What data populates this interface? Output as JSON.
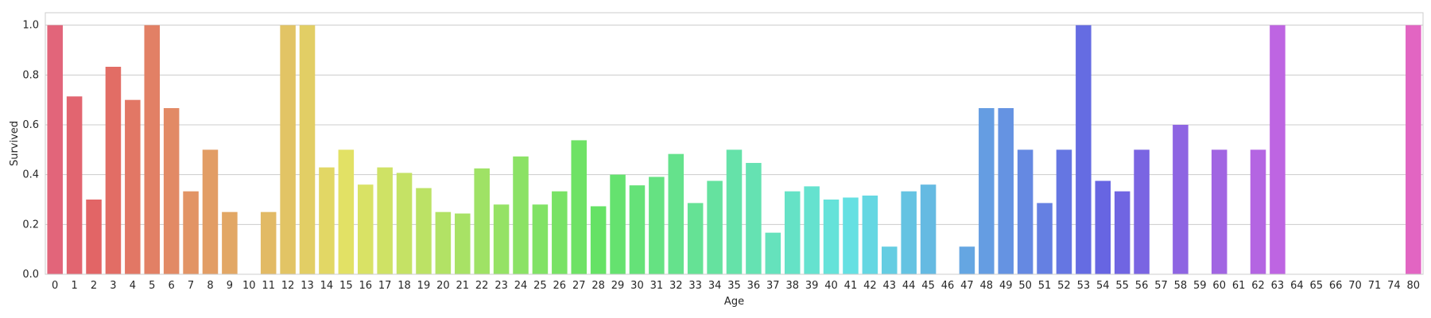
{
  "chart_data": {
    "type": "bar",
    "xlabel": "Age",
    "ylabel": "Survived",
    "ylim": [
      0,
      1.05
    ],
    "yticks": [
      0.0,
      0.2,
      0.4,
      0.6,
      0.8,
      1.0
    ],
    "ytick_labels": [
      "0.0",
      "0.2",
      "0.4",
      "0.6",
      "0.8",
      "1.0"
    ],
    "grid": "horizontal",
    "categories": [
      "0",
      "1",
      "2",
      "3",
      "4",
      "5",
      "6",
      "7",
      "8",
      "9",
      "10",
      "11",
      "12",
      "13",
      "14",
      "15",
      "16",
      "17",
      "18",
      "19",
      "20",
      "21",
      "22",
      "23",
      "24",
      "25",
      "26",
      "27",
      "28",
      "29",
      "30",
      "31",
      "32",
      "33",
      "34",
      "35",
      "36",
      "37",
      "38",
      "39",
      "40",
      "41",
      "42",
      "43",
      "44",
      "45",
      "46",
      "47",
      "48",
      "49",
      "50",
      "51",
      "52",
      "53",
      "54",
      "55",
      "56",
      "57",
      "58",
      "59",
      "60",
      "61",
      "62",
      "63",
      "64",
      "65",
      "66",
      "70",
      "71",
      "74",
      "80"
    ],
    "values": [
      1.0,
      0.714,
      0.3,
      0.833,
      0.7,
      1.0,
      0.667,
      0.333,
      0.5,
      0.25,
      0.0,
      0.25,
      1.0,
      1.0,
      0.429,
      0.5,
      0.36,
      0.429,
      0.407,
      0.346,
      0.25,
      0.244,
      0.425,
      0.28,
      0.473,
      0.28,
      0.333,
      0.538,
      0.273,
      0.4,
      0.357,
      0.391,
      0.483,
      0.286,
      0.375,
      0.5,
      0.447,
      0.167,
      0.333,
      0.353,
      0.3,
      0.308,
      0.316,
      0.111,
      0.333,
      0.36,
      0.0,
      0.111,
      0.667,
      0.667,
      0.5,
      0.286,
      0.5,
      1.0,
      0.375,
      0.333,
      0.5,
      0.0,
      0.6,
      0.0,
      0.5,
      0.0,
      0.5,
      1.0,
      0.0,
      0.0,
      0.0,
      0.0,
      0.0,
      0.0,
      1.0
    ]
  }
}
